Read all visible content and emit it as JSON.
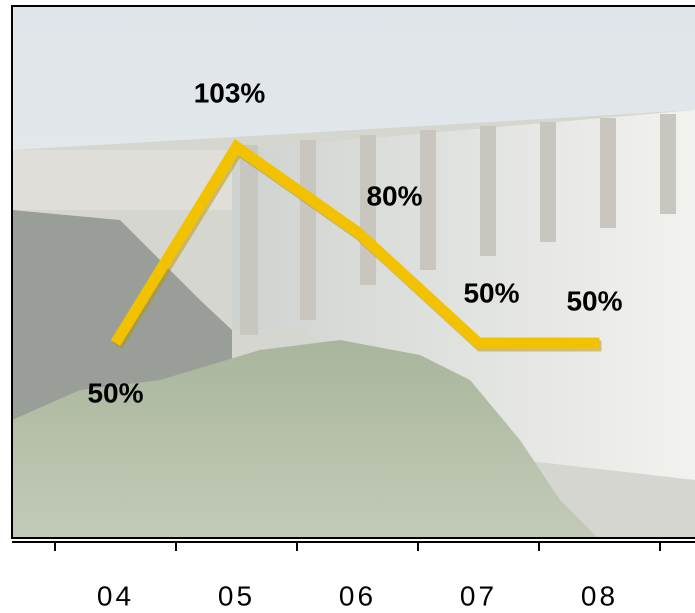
{
  "chart_data": {
    "type": "line",
    "categories": [
      "04",
      "05",
      "06",
      "07",
      "08"
    ],
    "values": [
      50,
      103,
      80,
      50,
      50
    ],
    "value_labels": [
      "50%",
      "103%",
      "80%",
      "50%",
      "50%"
    ],
    "color": "#f2c200",
    "ylim": [
      0,
      140
    ]
  }
}
